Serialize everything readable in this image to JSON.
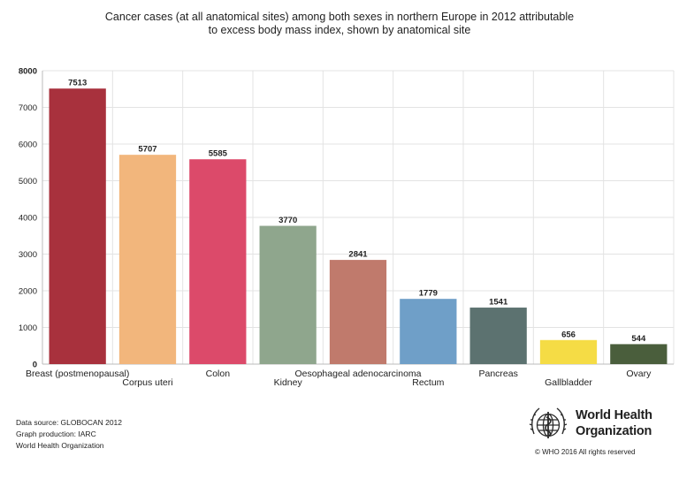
{
  "chart_data": {
    "type": "bar",
    "title_lines": [
      "Cancer cases (at all anatomical sites) among both sexes in northern Europe in 2012 attributable",
      "to excess body mass index, shown by anatomical site"
    ],
    "categories": [
      "Breast (postmenopausal)",
      "Corpus uteri",
      "Colon",
      "Kidney",
      "Oesophageal adenocarcinoma",
      "Rectum",
      "Pancreas",
      "Gallbladder",
      "Ovary"
    ],
    "values": [
      7513,
      5707,
      5585,
      3770,
      2841,
      1779,
      1541,
      656,
      544
    ],
    "colors": [
      "#a8313d",
      "#f2b67c",
      "#dc4a6a",
      "#8fa68d",
      "#c07a6c",
      "#6f9fc8",
      "#5c7270",
      "#f5dc45",
      "#4a5e3c"
    ],
    "ylim": [
      0,
      8000
    ],
    "yticks": [
      0,
      1000,
      2000,
      3000,
      4000,
      5000,
      6000,
      7000,
      8000
    ],
    "grid": true,
    "xlabel": "",
    "ylabel": ""
  },
  "footer": {
    "source": "Data source: GLOBOCAN 2012",
    "production": "Graph production: IARC",
    "org": "World Health Organization"
  },
  "logo": {
    "name_line1": "World Health",
    "name_line2": "Organization",
    "copyright": "© WHO 2016 All rights reserved",
    "icon": "who-emblem-icon"
  }
}
